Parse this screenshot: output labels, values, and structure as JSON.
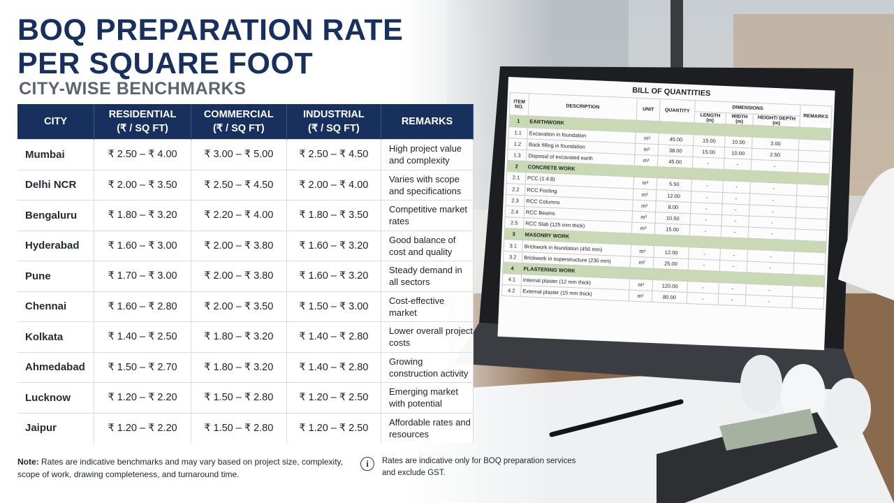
{
  "header": {
    "title_line1": "BOQ PREPARATION RATE",
    "title_line2": "PER SQUARE FOOT",
    "subtitle": "CITY-WISE BENCHMARKS"
  },
  "table": {
    "columns": [
      [
        "CITY"
      ],
      [
        "RESIDENTIAL",
        "(₹ / SQ FT)"
      ],
      [
        "COMMERCIAL",
        "(₹ / SQ FT)"
      ],
      [
        "INDUSTRIAL",
        "(₹ / SQ FT)"
      ],
      [
        "REMARKS"
      ]
    ],
    "rows": [
      [
        "Mumbai",
        "₹ 2.50 – ₹ 4.00",
        "₹ 3.00 – ₹ 5.00",
        "₹ 2.50 – ₹ 4.50",
        "High project value and complexity"
      ],
      [
        "Delhi NCR",
        "₹ 2.00 – ₹ 3.50",
        "₹ 2.50 – ₹ 4.50",
        "₹ 2.00 – ₹ 4.00",
        "Varies with scope and specifications"
      ],
      [
        "Bengaluru",
        "₹ 1.80 – ₹ 3.20",
        "₹ 2.20 – ₹ 4.00",
        "₹ 1.80 – ₹ 3.50",
        "Competitive market rates"
      ],
      [
        "Hyderabad",
        "₹ 1.60 – ₹ 3.00",
        "₹ 2.00 – ₹ 3.80",
        "₹ 1.60 – ₹ 3.20",
        "Good balance of cost and quality"
      ],
      [
        "Pune",
        "₹ 1.70 – ₹ 3.00",
        "₹ 2.00 – ₹ 3.80",
        "₹ 1.60 – ₹ 3.20",
        "Steady demand in all sectors"
      ],
      [
        "Chennai",
        "₹ 1.60 – ₹ 2.80",
        "₹ 2.00 – ₹ 3.50",
        "₹ 1.50 – ₹ 3.00",
        "Cost-effective market"
      ],
      [
        "Kolkata",
        "₹ 1.40 – ₹ 2.50",
        "₹ 1.80 – ₹ 3.20",
        "₹ 1.40 – ₹ 2.80",
        "Lower overall project costs"
      ],
      [
        "Ahmedabad",
        "₹ 1.50 – ₹ 2.70",
        "₹ 1.80 – ₹ 3.20",
        "₹ 1.40 – ₹ 2.80",
        "Growing construction activity"
      ],
      [
        "Lucknow",
        "₹ 1.20 – ₹ 2.20",
        "₹ 1.50 – ₹ 2.80",
        "₹ 1.20 – ₹ 2.50",
        "Emerging market with potential"
      ],
      [
        "Jaipur",
        "₹ 1.20 – ₹ 2.20",
        "₹ 1.50 – ₹ 2.80",
        "₹ 1.20 – ₹ 2.50",
        "Affordable rates and resources"
      ]
    ]
  },
  "note": {
    "label": "Note:",
    "text": "Rates are indicative benchmarks and may vary based on project size, complexity, scope of work, drawing completeness, and turnaround time."
  },
  "info": {
    "text": "Rates are indicative only for BOQ preparation services and exclude GST."
  },
  "boq": {
    "title": "BILL OF QUANTITIES",
    "headers": {
      "item_no": "ITEM NO.",
      "description": "DESCRIPTION",
      "unit": "UNIT",
      "quantity": "QUANTITY",
      "dimensions": "DIMENSIONS",
      "length": "LENGTH (m)",
      "width": "WIDTH (m)",
      "height": "HEIGHT/ DEPTH (m)",
      "remarks": "REMARKS"
    },
    "sections": [
      {
        "no": "1",
        "name": "EARTHWORK",
        "items": [
          [
            "1.1",
            "Excavation in foundation",
            "m³",
            "45.00",
            "15.00",
            "10.00",
            "3.00"
          ],
          [
            "1.2",
            "Back filling in foundation",
            "m³",
            "38.00",
            "15.00",
            "10.00",
            "2.50"
          ],
          [
            "1.3",
            "Disposal of excavated earth",
            "m³",
            "45.00",
            "-",
            "-",
            "-"
          ]
        ]
      },
      {
        "no": "2",
        "name": "CONCRETE WORK",
        "items": [
          [
            "2.1",
            "PCC (1:4:8)",
            "m³",
            "5.50",
            "-",
            "-",
            "-"
          ],
          [
            "2.2",
            "RCC Footing",
            "m³",
            "12.00",
            "-",
            "-",
            "-"
          ],
          [
            "2.3",
            "RCC Columns",
            "m³",
            "8.00",
            "-",
            "-",
            "-"
          ],
          [
            "2.4",
            "RCC Beams",
            "m³",
            "10.50",
            "-",
            "-",
            "-"
          ],
          [
            "2.5",
            "RCC Slab (125 mm thick)",
            "m³",
            "15.00",
            "-",
            "-",
            "-"
          ]
        ]
      },
      {
        "no": "3",
        "name": "MASONRY WORK",
        "items": [
          [
            "3.1",
            "Brickwork in foundation (450 mm)",
            "m³",
            "12.00",
            "-",
            "-",
            "-"
          ],
          [
            "3.2",
            "Brickwork in superstructure (230 mm)",
            "m²",
            "25.00",
            "-",
            "-",
            "-"
          ]
        ]
      },
      {
        "no": "4",
        "name": "PLASTERING WORK",
        "items": [
          [
            "4.1",
            "Internal plaster (12 mm thick)",
            "m²",
            "120.00",
            "-",
            "-",
            "-"
          ],
          [
            "4.2",
            "External plaster (15 mm thick)",
            "m²",
            "80.00",
            "-",
            "-",
            "-"
          ]
        ]
      }
    ]
  }
}
